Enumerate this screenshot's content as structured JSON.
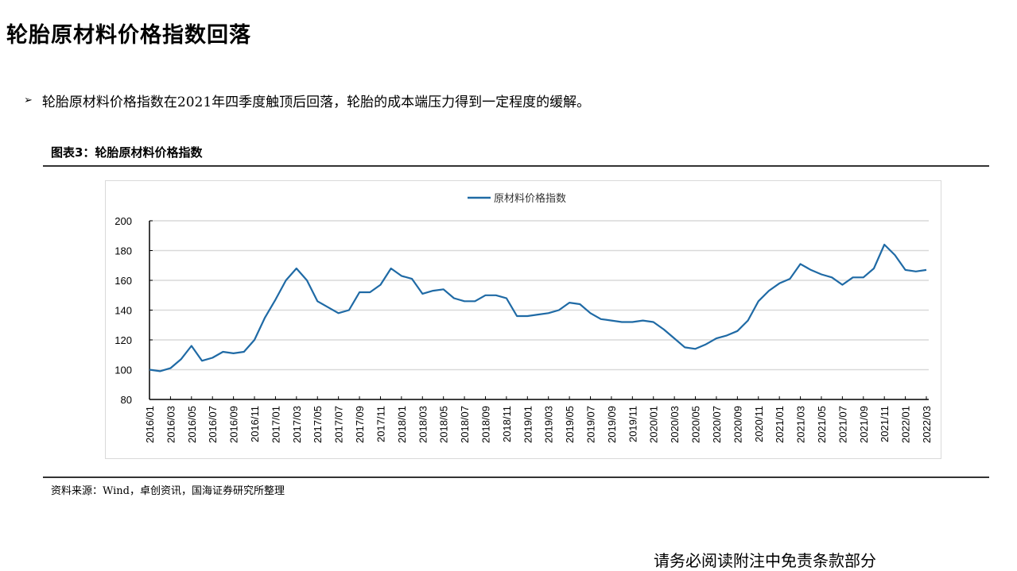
{
  "page": {
    "title": "轮胎原材料价格指数回落",
    "bullet_marker": "➢",
    "bullet_text": "轮胎原材料价格指数在2021年四季度触顶后回落，轮胎的成本端压力得到一定程度的缓解。",
    "figure_title": "图表3：轮胎原材料价格指数",
    "source": "资料来源：Wind，卓创资讯，国海证券研究所整理",
    "footer": "请务必阅读附注中免责条款部分"
  },
  "colors": {
    "line": "#1F6AA5",
    "grid": "#D9D9D9",
    "axis": "#000000"
  },
  "chart_data": {
    "type": "line",
    "title": "",
    "xlabel": "",
    "ylabel": "",
    "ylim": [
      80,
      200
    ],
    "yticks": [
      80,
      100,
      120,
      140,
      160,
      180,
      200
    ],
    "grid": "horizontal",
    "legend_position": "top-center",
    "x_tick_labels": [
      "2016/01",
      "2016/03",
      "2016/05",
      "2016/07",
      "2016/09",
      "2016/11",
      "2017/01",
      "2017/03",
      "2017/05",
      "2017/07",
      "2017/09",
      "2017/11",
      "2018/01",
      "2018/03",
      "2018/05",
      "2018/07",
      "2018/09",
      "2018/11",
      "2019/01",
      "2019/03",
      "2019/05",
      "2019/07",
      "2019/09",
      "2019/11",
      "2020/01",
      "2020/03",
      "2020/05",
      "2020/07",
      "2020/09",
      "2020/11",
      "2021/01",
      "2021/03",
      "2021/05",
      "2021/07",
      "2021/09",
      "2021/11",
      "2022/01",
      "2022/03"
    ],
    "x": [
      "2016/01",
      "2016/02",
      "2016/03",
      "2016/04",
      "2016/05",
      "2016/06",
      "2016/07",
      "2016/08",
      "2016/09",
      "2016/10",
      "2016/11",
      "2016/12",
      "2017/01",
      "2017/02",
      "2017/03",
      "2017/04",
      "2017/05",
      "2017/06",
      "2017/07",
      "2017/08",
      "2017/09",
      "2017/10",
      "2017/11",
      "2017/12",
      "2018/01",
      "2018/02",
      "2018/03",
      "2018/04",
      "2018/05",
      "2018/06",
      "2018/07",
      "2018/08",
      "2018/09",
      "2018/10",
      "2018/11",
      "2018/12",
      "2019/01",
      "2019/02",
      "2019/03",
      "2019/04",
      "2019/05",
      "2019/06",
      "2019/07",
      "2019/08",
      "2019/09",
      "2019/10",
      "2019/11",
      "2019/12",
      "2020/01",
      "2020/02",
      "2020/03",
      "2020/04",
      "2020/05",
      "2020/06",
      "2020/07",
      "2020/08",
      "2020/09",
      "2020/10",
      "2020/11",
      "2020/12",
      "2021/01",
      "2021/02",
      "2021/03",
      "2021/04",
      "2021/05",
      "2021/06",
      "2021/07",
      "2021/08",
      "2021/09",
      "2021/10",
      "2021/11",
      "2021/12",
      "2022/01",
      "2022/02",
      "2022/03"
    ],
    "series": [
      {
        "name": "原材料价格指数",
        "values": [
          100,
          99,
          101,
          107,
          116,
          106,
          108,
          112,
          111,
          112,
          120,
          135,
          147,
          160,
          168,
          160,
          146,
          142,
          138,
          140,
          152,
          152,
          157,
          168,
          163,
          161,
          151,
          153,
          154,
          148,
          146,
          146,
          150,
          150,
          148,
          136,
          136,
          137,
          138,
          140,
          145,
          144,
          138,
          134,
          133,
          132,
          132,
          133,
          132,
          127,
          121,
          115,
          114,
          117,
          121,
          123,
          126,
          133,
          146,
          153,
          158,
          161,
          171,
          167,
          164,
          162,
          157,
          162,
          162,
          168,
          184,
          177,
          167,
          166,
          167
        ]
      }
    ]
  }
}
